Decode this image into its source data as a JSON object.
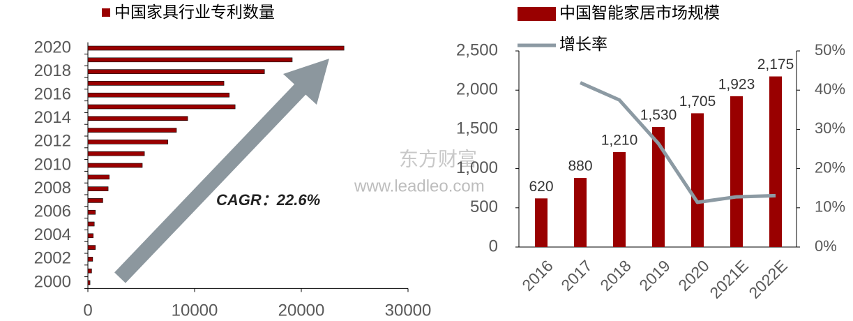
{
  "chart_data": [
    {
      "type": "hbar",
      "categories": [
        "2000",
        null,
        "2002",
        null,
        "2004",
        null,
        "2006",
        null,
        "2008",
        null,
        "2010",
        null,
        "2012",
        null,
        "2014",
        null,
        "2016",
        null,
        "2018",
        null,
        "2020"
      ],
      "series": [
        {
          "name": "中国家具行业专利数量",
          "color": "#990000",
          "values": [
            200,
            350,
            450,
            700,
            500,
            600,
            700,
            1400,
            1900,
            2000,
            5100,
            5300,
            7500,
            8300,
            9350,
            13800,
            13250,
            12750,
            16550,
            19150,
            24000
          ]
        }
      ],
      "xlim": [
        0,
        30000
      ],
      "xticks": [
        0,
        10000,
        20000,
        30000
      ],
      "annotations": [
        "CAGR：22.6%"
      ]
    },
    {
      "type": "barline",
      "categories": [
        "2016",
        "2017",
        "2018",
        "2019",
        "2020",
        "2021E",
        "2022E"
      ],
      "series": [
        {
          "name": "中国智能家居市场规模",
          "color": "#990000",
          "type": "bar",
          "values": [
            620,
            880,
            1210,
            1530,
            1705,
            1923,
            2175
          ],
          "value_labels": [
            "620",
            "880",
            "1,210",
            "1,530",
            "1,705",
            "1,923",
            "2,175"
          ]
        },
        {
          "name": "增长率",
          "color": "#8c9aa3",
          "type": "line",
          "axis": "y2",
          "values": [
            null,
            41.9,
            37.5,
            26.4,
            11.4,
            12.8,
            13.1
          ]
        }
      ],
      "ylim": [
        0,
        2500
      ],
      "yticks": [
        0,
        500,
        {
          "value": 1000,
          "label": "1,000"
        },
        {
          "value": 1500,
          "label": "1,500"
        },
        {
          "value": 2000,
          "label": "2,000"
        },
        {
          "value": 2500,
          "label": "2,500"
        }
      ],
      "y2lim": [
        0,
        50
      ],
      "y2ticks": [
        {
          "value": 0,
          "label": "0%"
        },
        {
          "value": 10,
          "label": "10%"
        },
        {
          "value": 20,
          "label": "20%"
        },
        {
          "value": 30,
          "label": "30%"
        },
        {
          "value": 40,
          "label": "40%"
        },
        {
          "value": 50,
          "label": "50%"
        }
      ]
    }
  ],
  "watermarks": [
    "东方财富",
    "www.leadleo.com"
  ]
}
